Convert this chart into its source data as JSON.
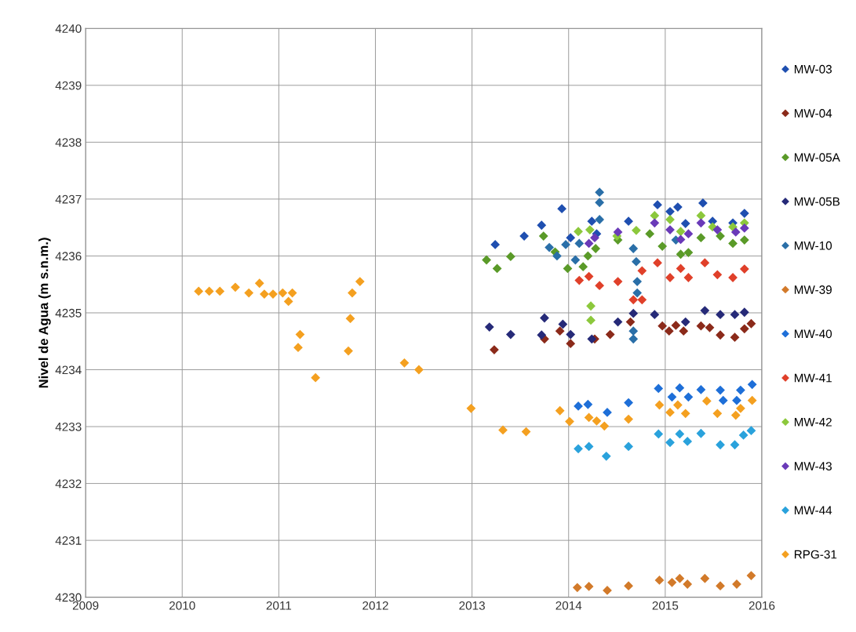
{
  "chart_data": {
    "type": "scatter",
    "ylabel": "Nivel de Agua (m s.n.m.)",
    "xlim": [
      2009,
      2016
    ],
    "xticks": [
      2009,
      2010,
      2011,
      2012,
      2013,
      2014,
      2015,
      2016
    ],
    "ylim": [
      4230,
      4240
    ],
    "yticks": [
      4230,
      4231,
      4232,
      4233,
      4234,
      4235,
      4236,
      4237,
      4238,
      4239,
      4240
    ],
    "grid": true,
    "legend": "right",
    "marker": "diamond",
    "series": [
      {
        "name": "MW-03",
        "color": "#1f4fb0",
        "x": [
          2013.24,
          2013.54,
          2013.72,
          2013.93,
          2014.02,
          2014.24,
          2014.29,
          2014.62,
          2014.92,
          2015.05,
          2015.13,
          2015.21,
          2015.39,
          2015.49,
          2015.7,
          2015.82
        ],
        "values": [
          4236.2,
          4236.35,
          4236.54,
          4236.83,
          4236.32,
          4236.61,
          4236.39,
          4236.61,
          4236.9,
          4236.78,
          4236.86,
          4236.57,
          4236.93,
          4236.61,
          4236.58,
          4236.75
        ]
      },
      {
        "name": "MW-04",
        "color": "#8b2a1a",
        "x": [
          2013.23,
          2013.75,
          2013.91,
          2014.02,
          2014.27,
          2014.43,
          2014.64,
          2014.97,
          2015.04,
          2015.11,
          2015.19,
          2015.37,
          2015.46,
          2015.57,
          2015.72,
          2015.82,
          2015.89
        ],
        "values": [
          4234.35,
          4234.54,
          4234.68,
          4234.46,
          4234.54,
          4234.62,
          4234.84,
          4234.77,
          4234.68,
          4234.78,
          4234.68,
          4234.77,
          4234.74,
          4234.61,
          4234.57,
          4234.72,
          4234.81
        ]
      },
      {
        "name": "MW-05A",
        "color": "#5a9a28",
        "x": [
          2013.15,
          2013.26,
          2013.4,
          2013.74,
          2013.86,
          2013.99,
          2014.15,
          2014.2,
          2014.28,
          2014.51,
          2014.84,
          2014.97,
          2015.16,
          2015.24,
          2015.37,
          2015.57,
          2015.7,
          2015.82
        ],
        "values": [
          4235.93,
          4235.78,
          4235.99,
          4236.35,
          4236.07,
          4235.78,
          4235.81,
          4236.0,
          4236.13,
          4236.28,
          4236.39,
          4236.17,
          4236.03,
          4236.06,
          4236.32,
          4236.35,
          4236.22,
          4236.28
        ]
      },
      {
        "name": "MW-05B",
        "color": "#262a78",
        "x": [
          2013.18,
          2013.4,
          2013.72,
          2013.75,
          2013.94,
          2014.02,
          2014.24,
          2014.51,
          2014.67,
          2014.89,
          2015.21,
          2015.41,
          2015.57,
          2015.72,
          2015.82
        ],
        "values": [
          4234.75,
          4234.62,
          4234.61,
          4234.91,
          4234.8,
          4234.62,
          4234.54,
          4234.84,
          4234.99,
          4234.97,
          4234.84,
          4235.04,
          4234.97,
          4234.97,
          4235.01
        ]
      },
      {
        "name": "MW-10",
        "color": "#2a6fa8",
        "x": [
          2013.8,
          2013.88,
          2013.97,
          2014.07,
          2014.11,
          2014.32,
          2014.32,
          2014.32,
          2014.67,
          2014.7,
          2014.71,
          2014.71,
          2014.67,
          2014.67,
          2015.11
        ],
        "values": [
          4236.15,
          4236.0,
          4236.2,
          4235.93,
          4236.22,
          4237.12,
          4236.94,
          4236.64,
          4236.13,
          4235.9,
          4235.55,
          4235.35,
          4234.68,
          4234.54,
          4236.28
        ]
      },
      {
        "name": "MW-39",
        "color": "#d27a2a",
        "x": [
          2014.09,
          2014.21,
          2014.4,
          2014.62,
          2014.94,
          2015.07,
          2015.15,
          2015.23,
          2015.41,
          2015.57,
          2015.74,
          2015.89
        ],
        "values": [
          4230.17,
          4230.19,
          4230.12,
          4230.2,
          4230.3,
          4230.26,
          4230.33,
          4230.23,
          4230.33,
          4230.2,
          4230.23,
          4230.38
        ]
      },
      {
        "name": "MW-40",
        "color": "#1e6fd8",
        "x": [
          2014.1,
          2014.2,
          2014.4,
          2014.62,
          2014.93,
          2015.07,
          2015.15,
          2015.24,
          2015.37,
          2015.57,
          2015.6,
          2015.74,
          2015.78,
          2015.9
        ],
        "values": [
          4233.36,
          4233.39,
          4233.25,
          4233.42,
          4233.67,
          4233.52,
          4233.68,
          4233.52,
          4233.65,
          4233.64,
          4233.46,
          4233.46,
          4233.64,
          4233.74
        ]
      },
      {
        "name": "MW-41",
        "color": "#e0402a",
        "x": [
          2014.11,
          2014.21,
          2014.32,
          2014.51,
          2014.76,
          2014.92,
          2015.05,
          2015.16,
          2015.24,
          2015.41,
          2015.54,
          2015.7,
          2015.82,
          2014.67,
          2014.76
        ],
        "values": [
          4235.57,
          4235.64,
          4235.48,
          4235.55,
          4235.74,
          4235.88,
          4235.62,
          4235.78,
          4235.62,
          4235.88,
          4235.67,
          4235.62,
          4235.77,
          4235.23,
          4235.23
        ]
      },
      {
        "name": "MW-42",
        "color": "#8cc83c",
        "x": [
          2014.1,
          2014.22,
          2014.23,
          2014.23,
          2014.5,
          2014.7,
          2014.89,
          2015.05,
          2015.16,
          2015.37,
          2015.49,
          2015.7,
          2015.82
        ],
        "values": [
          4236.43,
          4236.46,
          4235.12,
          4234.87,
          4236.35,
          4236.45,
          4236.71,
          4236.64,
          4236.43,
          4236.71,
          4236.51,
          4236.51,
          4236.58
        ]
      },
      {
        "name": "MW-43",
        "color": "#6a3ab8",
        "x": [
          2014.21,
          2014.27,
          2014.51,
          2014.89,
          2015.05,
          2015.16,
          2015.24,
          2015.37,
          2015.54,
          2015.73,
          2015.82
        ],
        "values": [
          4236.22,
          4236.32,
          4236.42,
          4236.58,
          4236.46,
          4236.29,
          4236.39,
          4236.58,
          4236.46,
          4236.42,
          4236.49
        ]
      },
      {
        "name": "MW-44",
        "color": "#2aa2dc",
        "x": [
          2014.1,
          2014.21,
          2014.39,
          2014.62,
          2014.93,
          2015.05,
          2015.15,
          2015.23,
          2015.37,
          2015.57,
          2015.72,
          2015.81,
          2015.89
        ],
        "values": [
          4232.61,
          4232.65,
          4232.48,
          4232.65,
          4232.87,
          4232.72,
          4232.87,
          4232.74,
          4232.88,
          4232.68,
          4232.68,
          4232.85,
          4232.93
        ]
      },
      {
        "name": "RPG-31",
        "color": "#f4a020",
        "x": [
          2010.17,
          2010.28,
          2010.39,
          2010.55,
          2010.69,
          2010.8,
          2010.85,
          2010.94,
          2011.04,
          2011.14,
          2011.1,
          2011.22,
          2011.2,
          2011.38,
          2011.72,
          2011.74,
          2011.76,
          2011.84,
          2012.3,
          2012.45,
          2012.99,
          2013.32,
          2013.56,
          2013.91,
          2014.01,
          2014.21,
          2014.29,
          2014.37,
          2014.62,
          2014.94,
          2015.05,
          2015.13,
          2015.21,
          2015.43,
          2015.54,
          2015.73,
          2015.78,
          2015.9
        ],
        "values": [
          4235.38,
          4235.38,
          4235.38,
          4235.45,
          4235.35,
          4235.52,
          4235.33,
          4235.33,
          4235.35,
          4235.35,
          4235.2,
          4234.62,
          4234.39,
          4233.86,
          4234.33,
          4234.9,
          4235.35,
          4235.55,
          4234.12,
          4234.0,
          4233.32,
          4232.94,
          4232.91,
          4233.28,
          4233.09,
          4233.16,
          4233.1,
          4233.01,
          4233.13,
          4233.38,
          4233.25,
          4233.38,
          4233.23,
          4233.45,
          4233.23,
          4233.2,
          4233.32,
          4233.46
        ]
      }
    ]
  }
}
